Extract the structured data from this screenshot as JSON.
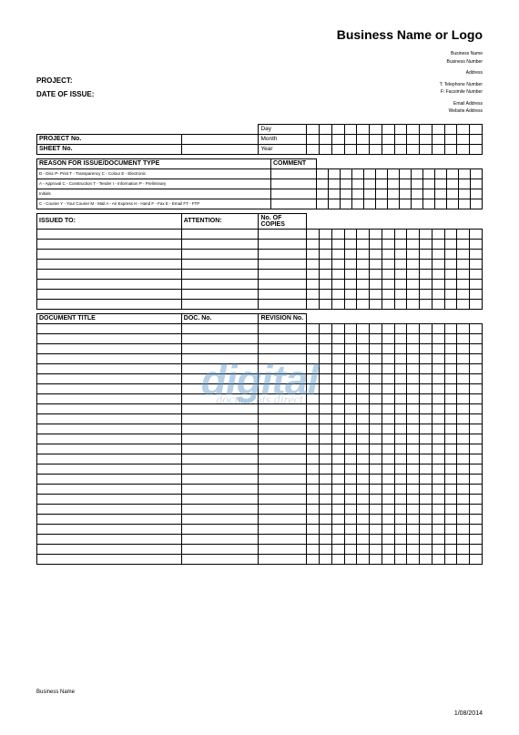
{
  "header": {
    "logo_title": "Business Name or Logo",
    "biz_name": "Business Name",
    "biz_number": "Business Number",
    "address": "Address",
    "tel": "T: Telephone Number",
    "fax": "F: Facsimile Number",
    "email": "Email Address",
    "web": "Website Address"
  },
  "fields": {
    "project_label": "PROJECT:",
    "date_of_issue_label": "DATE OF ISSUE:"
  },
  "date_rows": {
    "project_no": "PROJECT No.",
    "sheet_no": "SHEET No.",
    "day": "Day",
    "month": "Month",
    "year": "Year"
  },
  "reason": {
    "header": "REASON FOR ISSUE/DOCUMENT TYPE",
    "comment": "COMMENT",
    "line1": "D - Disc P- Print T - Transparency C - Colour E - Electronic",
    "line2": "A - Approval C - Construction T - Tender I - Information P - Preliminary",
    "line3": "Initials",
    "line4": "C - Courier Y - Your Courier M - Mail A - Air Express H - Hand F - Fax E - Email FT - FTP"
  },
  "issued": {
    "issued_to": "ISSUED TO:",
    "attention": "ATTENTION:",
    "no_of_copies": "No. OF COPIES"
  },
  "doc": {
    "doc_title": "DOCUMENT TITLE",
    "doc_no": "DOC. No.",
    "revision_no": "REVISION No."
  },
  "grid": {
    "cols": 14,
    "issued_rows": 8,
    "doc_rows": 24
  },
  "watermark": {
    "main": "digital",
    "sub": "documents direct"
  },
  "footer": {
    "left": "Business Name",
    "right": "1/08/2014"
  },
  "colors": {
    "border": "#000000",
    "watermark": "rgba(90,150,200,0.45)"
  }
}
